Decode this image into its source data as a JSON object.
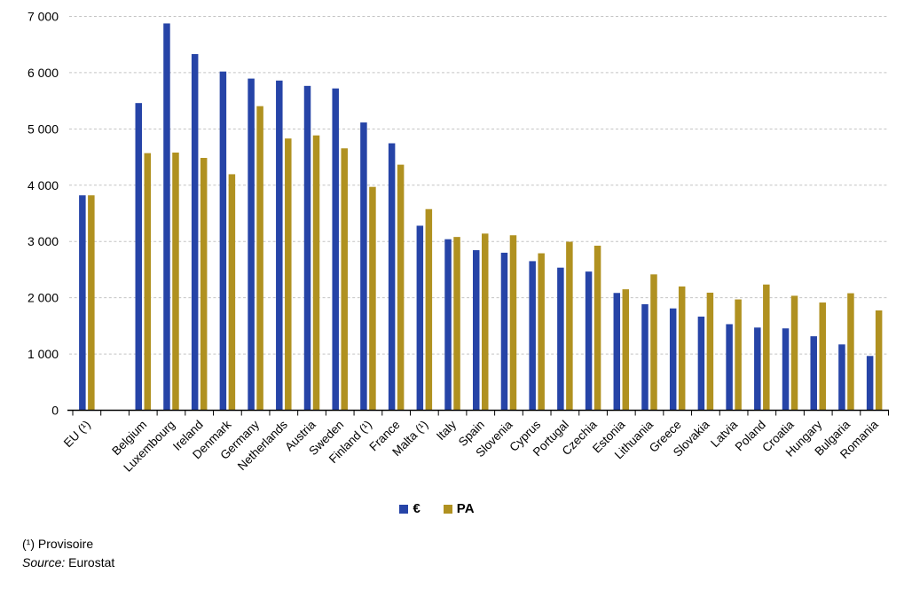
{
  "chart_data": {
    "type": "bar",
    "title": "",
    "xlabel": "",
    "ylabel": "",
    "categories": [
      "EU (¹)",
      "Belgium",
      "Luxembourg",
      "Ireland",
      "Denmark",
      "Germany",
      "Netherlands",
      "Austria",
      "Sweden",
      "Finland (¹)",
      "France",
      "Malta (¹)",
      "Italy",
      "Spain",
      "Slovenia",
      "Cyprus",
      "Portugal",
      "Czechia",
      "Estonia",
      "Lithuania",
      "Greece",
      "Slovakia",
      "Latvia",
      "Poland",
      "Croatia",
      "Hungary",
      "Bulgaria",
      "Romania"
    ],
    "series": [
      {
        "name": "€",
        "color": "#2644A7",
        "values": [
          3820,
          5460,
          6875,
          6330,
          6020,
          5895,
          5860,
          5765,
          5720,
          5115,
          4745,
          3280,
          3040,
          2845,
          2800,
          2650,
          2535,
          2465,
          2085,
          1885,
          1810,
          1665,
          1530,
          1470,
          1455,
          1315,
          1170,
          965
        ]
      },
      {
        "name": "PA",
        "color": "#B09120",
        "values": [
          3820,
          4570,
          4580,
          4485,
          4195,
          5405,
          4830,
          4885,
          4655,
          3970,
          4365,
          3575,
          3080,
          3140,
          3110,
          2790,
          2995,
          2925,
          2150,
          2415,
          2200,
          2090,
          1970,
          2235,
          2035,
          1915,
          2080,
          1775
        ]
      }
    ],
    "ylim": [
      0,
      7000
    ],
    "yticks": [
      0,
      1000,
      2000,
      3000,
      4000,
      5000,
      6000,
      7000
    ],
    "ytick_labels": [
      "0",
      "1 000",
      "2 000",
      "3 000",
      "4 000",
      "5 000",
      "6 000",
      "7 000"
    ],
    "grid": "horizontal-dashed",
    "gridline_color": "#c4c4c4",
    "axis_color": "#000000",
    "text_color": "#000000",
    "legend_position": "bottom-center",
    "x_label_rotation": -45,
    "gap_after_first_category": true
  },
  "footnotes": {
    "provisional": "(¹) Provisoire",
    "source_label": "Source:",
    "source_value": "Eurostat"
  }
}
